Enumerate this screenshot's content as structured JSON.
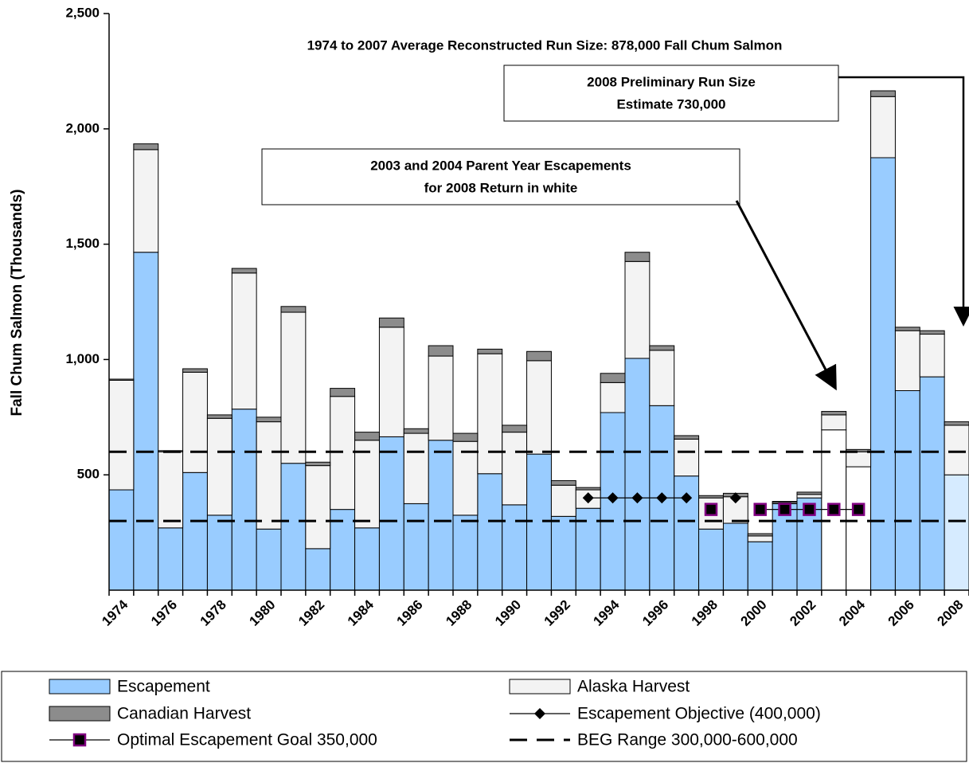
{
  "chart_data": {
    "type": "bar",
    "stacked": true,
    "title": "1974 to 2007 Average Reconstructed Run Size: 878,000 Fall Chum Salmon",
    "y_label": "Fall Chum Salmon (Thousands)",
    "categories": [
      "1974",
      null,
      "1976",
      null,
      "1978",
      null,
      "1980",
      null,
      "1982",
      null,
      "1984",
      null,
      "1986",
      null,
      "1988",
      null,
      "1990",
      null,
      "1992",
      null,
      "1994",
      null,
      "1996",
      null,
      "1998",
      null,
      "2000",
      null,
      "2002",
      null,
      "2004",
      null,
      "2006",
      null,
      "2008"
    ],
    "series": [
      {
        "name": "Escapement",
        "color": "#99ccff",
        "colors": [
          "#99ccff",
          "#99ccff",
          "#99ccff",
          "#99ccff",
          "#99ccff",
          "#99ccff",
          "#99ccff",
          "#99ccff",
          "#99ccff",
          "#99ccff",
          "#99ccff",
          "#99ccff",
          "#99ccff",
          "#99ccff",
          "#99ccff",
          "#99ccff",
          "#99ccff",
          "#99ccff",
          "#99ccff",
          "#99ccff",
          "#99ccff",
          "#99ccff",
          "#99ccff",
          "#99ccff",
          "#99ccff",
          "#99ccff",
          "#99ccff",
          "#99ccff",
          "#99ccff",
          "#ffffff",
          "#ffffff",
          "#99ccff",
          "#99ccff",
          "#99ccff",
          "#d6ebff"
        ],
        "values": [
          435,
          1465,
          270,
          510,
          325,
          785,
          265,
          550,
          180,
          350,
          270,
          665,
          375,
          650,
          325,
          505,
          370,
          590,
          320,
          355,
          770,
          1005,
          800,
          495,
          265,
          290,
          210,
          375,
          400,
          695,
          535,
          1875,
          865,
          925,
          500
        ]
      },
      {
        "name": "Alaska Harvest",
        "color": "#f3f3f3",
        "values": [
          475,
          445,
          330,
          435,
          420,
          590,
          465,
          655,
          360,
          490,
          380,
          475,
          305,
          365,
          320,
          520,
          315,
          405,
          135,
          80,
          130,
          420,
          240,
          160,
          135,
          115,
          25,
          5,
          15,
          65,
          65,
          265,
          260,
          185,
          215
        ]
      },
      {
        "name": "Canadian Harvest",
        "color": "#8c8c8c",
        "values": [
          5,
          25,
          5,
          15,
          15,
          20,
          20,
          25,
          15,
          35,
          35,
          40,
          20,
          45,
          35,
          20,
          30,
          40,
          20,
          10,
          40,
          40,
          20,
          15,
          10,
          15,
          10,
          5,
          10,
          15,
          10,
          25,
          15,
          15,
          15
        ]
      }
    ],
    "lines": [
      {
        "name": "Escapement Objective (400,000)",
        "color": "#000000",
        "marker": "diamond",
        "values": [
          null,
          null,
          null,
          null,
          null,
          null,
          null,
          null,
          null,
          null,
          null,
          null,
          null,
          null,
          null,
          null,
          null,
          null,
          null,
          400,
          400,
          400,
          400,
          400,
          null,
          400,
          null,
          null,
          null,
          null,
          null,
          null,
          null,
          null,
          null
        ]
      },
      {
        "name": "Optimal Escapement Goal 350,000",
        "color": "#800080",
        "marker": "square",
        "values": [
          null,
          null,
          null,
          null,
          null,
          null,
          null,
          null,
          null,
          null,
          null,
          null,
          null,
          null,
          null,
          null,
          null,
          null,
          null,
          null,
          null,
          null,
          null,
          null,
          350,
          null,
          350,
          350,
          350,
          350,
          350,
          null,
          null,
          null,
          null
        ]
      }
    ],
    "reference_lines": {
      "name": "BEG Range 300,000-600,000",
      "values": [
        300,
        600
      ]
    },
    "annotations": [
      {
        "lines": [
          "2008 Preliminary Run Size",
          "Estimate 730,000"
        ]
      },
      {
        "lines": [
          "2003 and 2004 Parent Year Escapements",
          "for 2008 Return in white"
        ]
      }
    ],
    "ylim": [
      0,
      2500
    ],
    "yticks": [
      {
        "value": 500,
        "label": "500"
      },
      {
        "value": 1000,
        "label": "1,000"
      },
      {
        "value": 1500,
        "label": "1,500"
      },
      {
        "value": 2000,
        "label": "2,000"
      },
      {
        "value": 2500,
        "label": "2,500"
      }
    ]
  }
}
